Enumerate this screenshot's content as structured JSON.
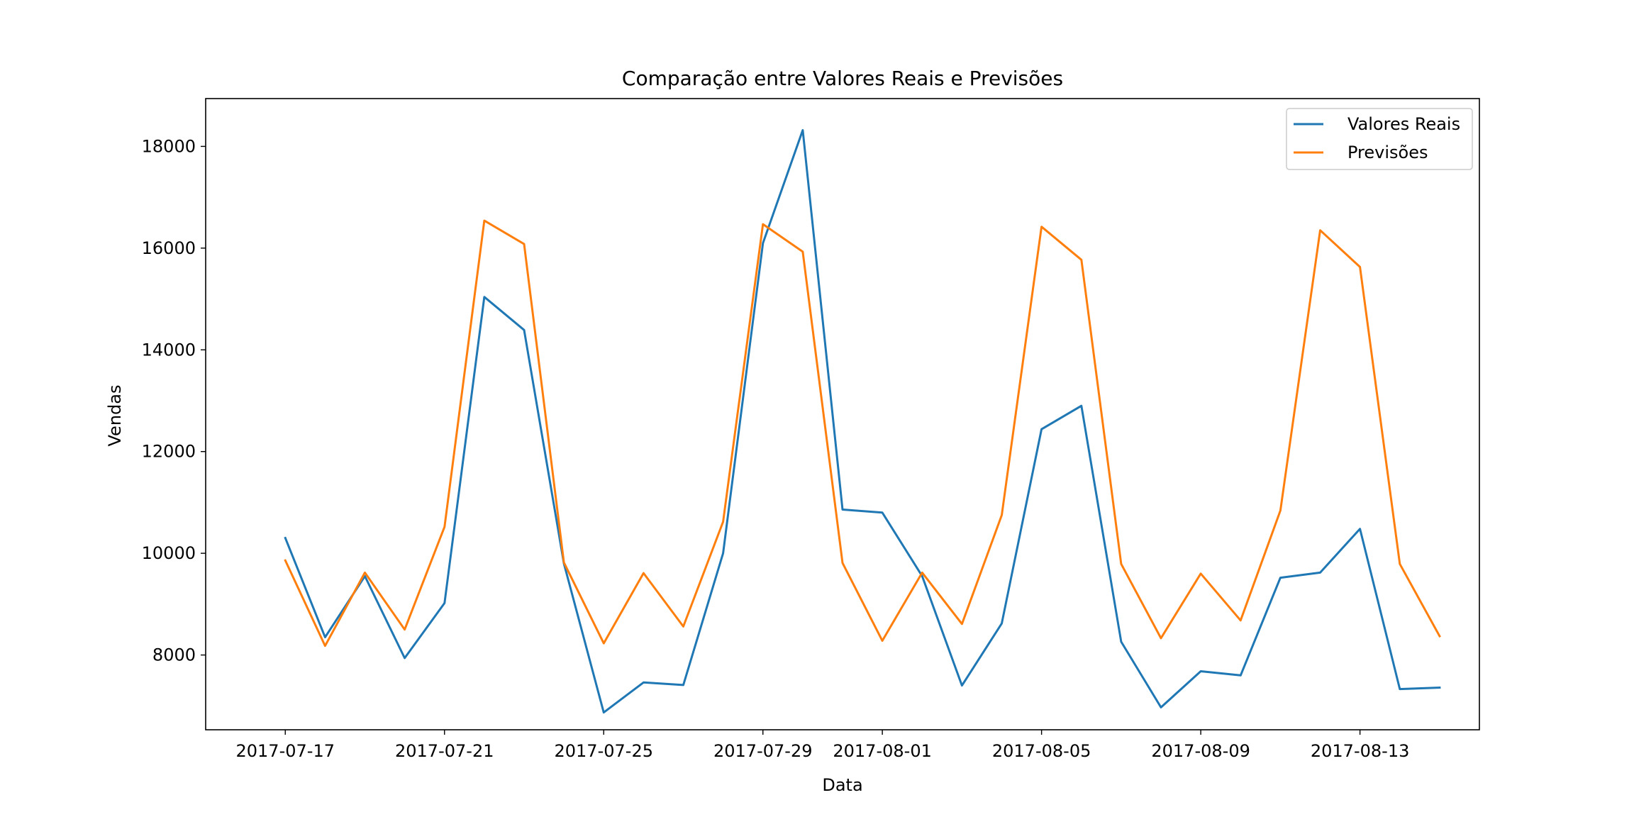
{
  "chart_data": {
    "type": "line",
    "title": "Comparação entre Valores Reais e Previsões",
    "xlabel": "Data",
    "ylabel": "Vendas",
    "x": [
      "2017-07-17",
      "2017-07-18",
      "2017-07-19",
      "2017-07-20",
      "2017-07-21",
      "2017-07-22",
      "2017-07-23",
      "2017-07-24",
      "2017-07-25",
      "2017-07-26",
      "2017-07-27",
      "2017-07-28",
      "2017-07-29",
      "2017-07-30",
      "2017-07-31",
      "2017-08-01",
      "2017-08-02",
      "2017-08-03",
      "2017-08-04",
      "2017-08-05",
      "2017-08-06",
      "2017-08-07",
      "2017-08-08",
      "2017-08-09",
      "2017-08-10",
      "2017-08-11",
      "2017-08-12",
      "2017-08-13",
      "2017-08-14",
      "2017-08-15"
    ],
    "series": [
      {
        "name": "Valores Reais",
        "color": "#1f77b4",
        "values": [
          10300,
          8350,
          9550,
          7940,
          9020,
          15040,
          14390,
          9800,
          6870,
          7460,
          7410,
          10000,
          16100,
          18320,
          10860,
          10800,
          9550,
          7400,
          8620,
          12440,
          12900,
          8260,
          6970,
          7680,
          7600,
          9520,
          9620,
          10480,
          7330,
          7360
        ]
      },
      {
        "name": "Previsões",
        "color": "#ff7f0e",
        "values": [
          9860,
          8180,
          9620,
          8500,
          10520,
          16540,
          16080,
          9820,
          8230,
          9610,
          8560,
          10620,
          16470,
          15930,
          9810,
          8280,
          9620,
          8610,
          10750,
          16420,
          15770,
          9790,
          8330,
          9600,
          8680,
          10840,
          16350,
          15630,
          9790,
          8370
        ]
      }
    ],
    "xticks": [
      "2017-07-17",
      "2017-07-21",
      "2017-07-25",
      "2017-07-29",
      "2017-08-01",
      "2017-08-05",
      "2017-08-09",
      "2017-08-13"
    ],
    "yticks": [
      8000,
      10000,
      12000,
      14000,
      16000,
      18000
    ],
    "ylim": [
      6530,
      18940
    ],
    "xlim": [
      "2017-07-15",
      "2017-08-16"
    ],
    "grid": false,
    "legend_position": "top-right"
  }
}
